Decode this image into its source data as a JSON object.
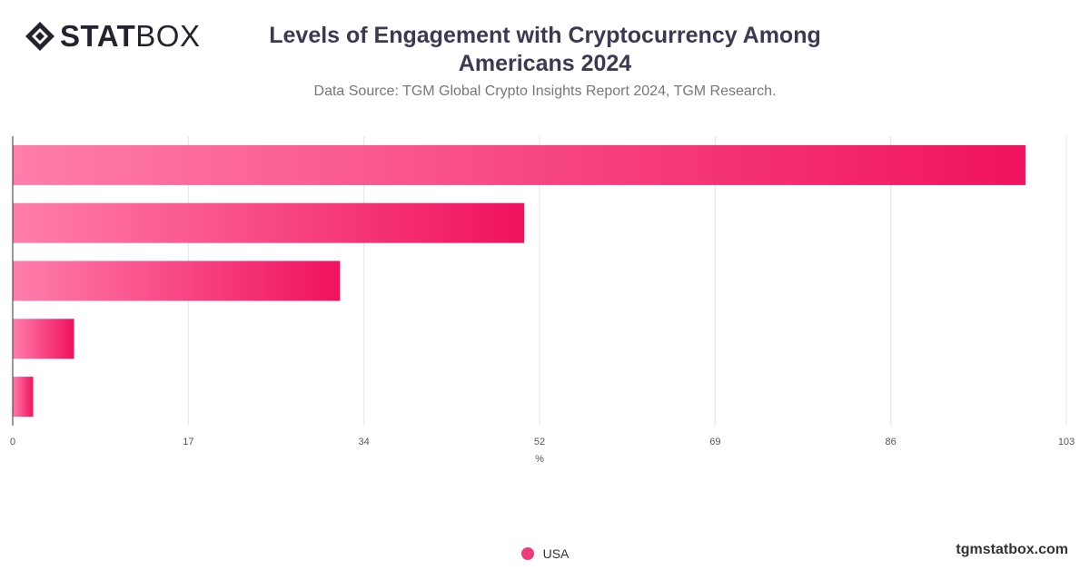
{
  "logo": {
    "text_bold": "STAT",
    "text_light": "BOX"
  },
  "title": "Levels of Engagement with Cryptocurrency Among Americans 2024",
  "subtitle": "Data Source: TGM Global Crypto Insights Report 2024, TGM Research.",
  "site": "tgmstatbox.com",
  "colors": {
    "bar_start": "#ff7eab",
    "bar_end": "#f0125f",
    "legend": "#ec3c7e",
    "grid": "#e4e4e4",
    "axis": "#333333"
  },
  "chart_data": {
    "type": "bar",
    "orientation": "horizontal",
    "title": "Levels of Engagement with Cryptocurrency Among Americans 2024",
    "subtitle": "Data Source: TGM Global Crypto Insights Report 2024, TGM Research.",
    "xlabel": "%",
    "ylabel": "",
    "xlim": [
      0,
      103
    ],
    "xticks": [
      "0",
      "17",
      "34",
      "52",
      "69",
      "86",
      "103"
    ],
    "categories": [
      "",
      "",
      "",
      "",
      ""
    ],
    "series": [
      {
        "name": "USA",
        "values": [
          99,
          50,
          32,
          6,
          2
        ]
      }
    ],
    "grid": true,
    "legend_position": "bottom-center"
  }
}
